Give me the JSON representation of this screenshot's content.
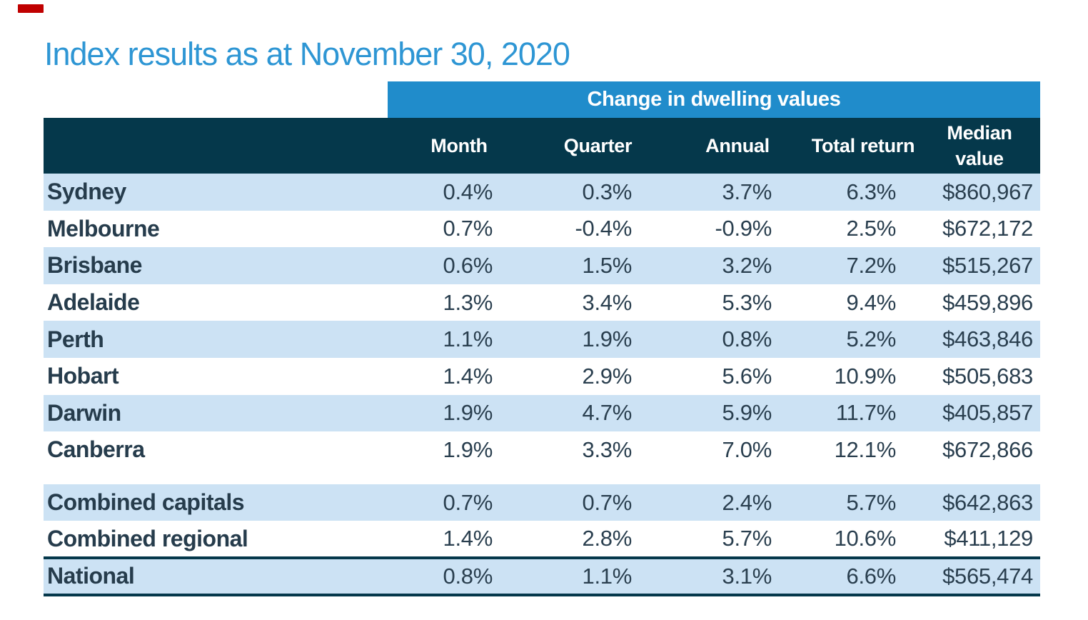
{
  "top_left_marker": {
    "color": "#c00000"
  },
  "title": "Index results as at November 30, 2020",
  "colors": {
    "title_blue": "#2e96d4",
    "banner_blue": "#208ccb",
    "header_navy": "#05384b",
    "row_shaded_blue": "#cce2f4",
    "text_dark_navy": "#2a3f4f",
    "rule_navy": "#05384b"
  },
  "chart_data": {
    "type": "table",
    "title": "Index results as at November 30, 2020",
    "banner": "Change in dwelling values",
    "columns": [
      "Month",
      "Quarter",
      "Annual",
      "Total return",
      "Median value"
    ],
    "layout": {
      "shading": "alternating rows starting shaded",
      "grid": false
    },
    "sections": [
      {
        "name": "capitals",
        "rows": [
          {
            "region": "Sydney",
            "values": [
              "0.4%",
              "0.3%",
              "3.7%",
              "6.3%",
              "$860,967"
            ]
          },
          {
            "region": "Melbourne",
            "values": [
              "0.7%",
              "-0.4%",
              "-0.9%",
              "2.5%",
              "$672,172"
            ]
          },
          {
            "region": "Brisbane",
            "values": [
              "0.6%",
              "1.5%",
              "3.2%",
              "7.2%",
              "$515,267"
            ]
          },
          {
            "region": "Adelaide",
            "values": [
              "1.3%",
              "3.4%",
              "5.3%",
              "9.4%",
              "$459,896"
            ]
          },
          {
            "region": "Perth",
            "values": [
              "1.1%",
              "1.9%",
              "0.8%",
              "5.2%",
              "$463,846"
            ]
          },
          {
            "region": "Hobart",
            "values": [
              "1.4%",
              "2.9%",
              "5.6%",
              "10.9%",
              "$505,683"
            ]
          },
          {
            "region": "Darwin",
            "values": [
              "1.9%",
              "4.7%",
              "5.9%",
              "11.7%",
              "$405,857"
            ]
          },
          {
            "region": "Canberra",
            "values": [
              "1.9%",
              "3.3%",
              "7.0%",
              "12.1%",
              "$672,866"
            ]
          }
        ]
      },
      {
        "name": "combined",
        "rows": [
          {
            "region": "Combined capitals",
            "values": [
              "0.7%",
              "0.7%",
              "2.4%",
              "5.7%",
              "$642,863"
            ]
          },
          {
            "region": "Combined regional",
            "values": [
              "1.4%",
              "2.8%",
              "5.7%",
              "10.6%",
              "$411,129"
            ]
          }
        ]
      },
      {
        "name": "national",
        "rows": [
          {
            "region": "National",
            "values": [
              "0.8%",
              "1.1%",
              "3.1%",
              "6.6%",
              "$565,474"
            ]
          }
        ]
      }
    ]
  }
}
